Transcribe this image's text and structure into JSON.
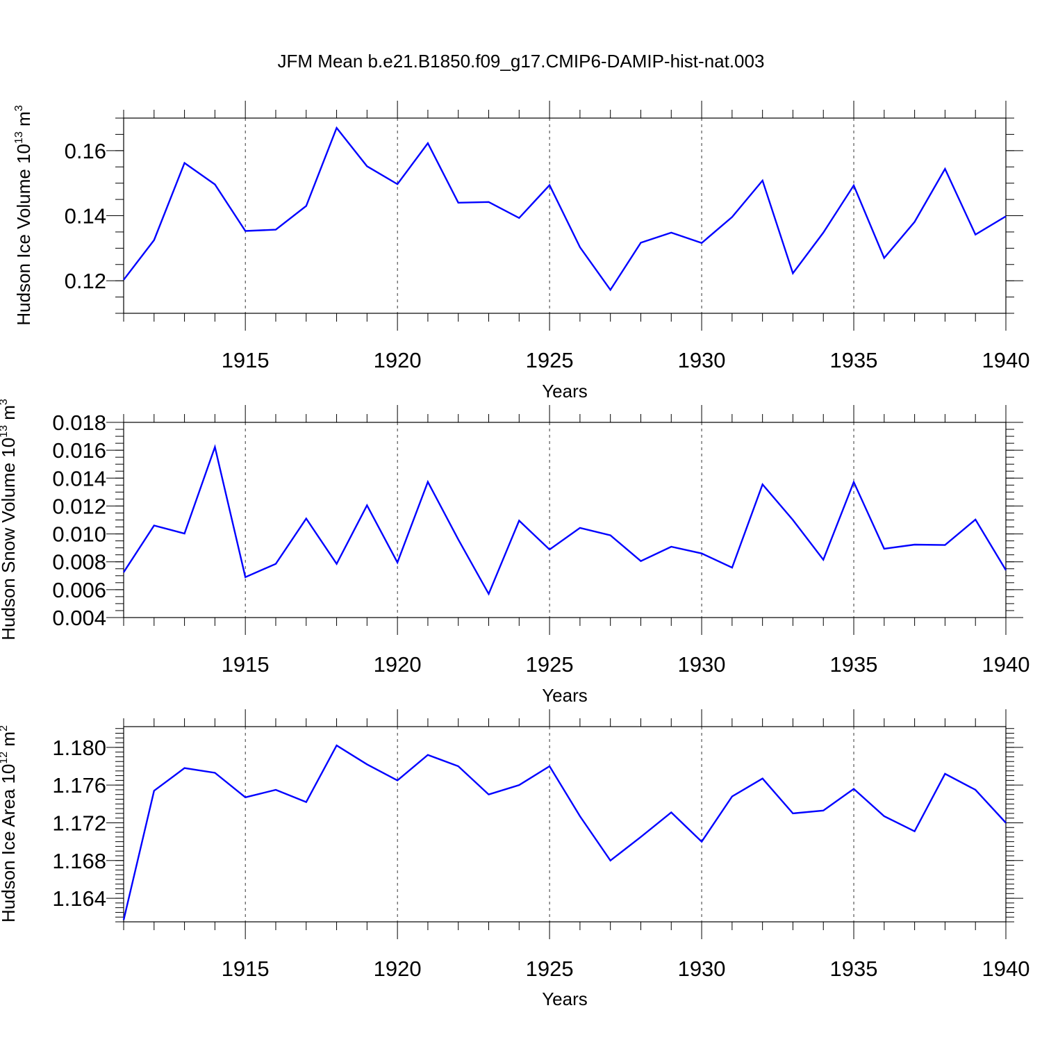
{
  "title": "JFM Mean b.e21.B1850.f09_g17.CMIP6-DAMIP-hist-nat.003",
  "chart_data": [
    {
      "type": "line",
      "ylabel": "Hudson Ice Volume 10",
      "ylabel_exp": "13",
      "ylabel_unit": " m",
      "ylabel_unit_exp": "3",
      "xlabel": "Years",
      "xlim": [
        1911,
        1940
      ],
      "ylim": [
        0.11,
        0.17
      ],
      "major_yticks": [
        0.12,
        0.14,
        0.16
      ],
      "major_ytick_labels": [
        "0.12",
        "0.14",
        "0.16"
      ],
      "minor_ystep": 0.005,
      "major_xticks": [
        1915,
        1920,
        1925,
        1930,
        1935,
        1940
      ],
      "major_xtick_labels": [
        "1915",
        "1920",
        "1925",
        "1930",
        "1935",
        "1940"
      ],
      "line_color": "#0000ff",
      "grid": "vertical dashed at major x ticks",
      "x": [
        1911,
        1912,
        1913,
        1914,
        1915,
        1916,
        1917,
        1918,
        1919,
        1920,
        1921,
        1922,
        1923,
        1924,
        1925,
        1926,
        1927,
        1928,
        1929,
        1930,
        1931,
        1932,
        1933,
        1934,
        1935,
        1936,
        1937,
        1938,
        1939,
        1940
      ],
      "values": [
        0.1203,
        0.1325,
        0.1562,
        0.1496,
        0.1353,
        0.1357,
        0.143,
        0.167,
        0.1552,
        0.1497,
        0.1623,
        0.144,
        0.1442,
        0.1393,
        0.1494,
        0.1303,
        0.1172,
        0.1317,
        0.1348,
        0.1316,
        0.1396,
        0.1508,
        0.1223,
        0.1348,
        0.1493,
        0.127,
        0.1381,
        0.1544,
        0.1342,
        0.1398
      ]
    },
    {
      "type": "line",
      "ylabel": "Hudson Snow Volume 10",
      "ylabel_exp": "13",
      "ylabel_unit": " m",
      "ylabel_unit_exp": "3",
      "xlabel": "Years",
      "xlim": [
        1911,
        1940
      ],
      "ylim": [
        0.004,
        0.018
      ],
      "major_yticks": [
        0.004,
        0.006,
        0.008,
        0.01,
        0.012,
        0.014,
        0.016,
        0.018
      ],
      "major_ytick_labels": [
        "0.004",
        "0.006",
        "0.008",
        "0.010",
        "0.012",
        "0.014",
        "0.016",
        "0.018"
      ],
      "minor_ystep": 0.0005,
      "major_xticks": [
        1915,
        1920,
        1925,
        1930,
        1935,
        1940
      ],
      "major_xtick_labels": [
        "1915",
        "1920",
        "1925",
        "1930",
        "1935",
        "1940"
      ],
      "line_color": "#0000ff",
      "grid": "vertical dashed at major x ticks",
      "x": [
        1911,
        1912,
        1913,
        1914,
        1915,
        1916,
        1917,
        1918,
        1919,
        1920,
        1921,
        1922,
        1923,
        1924,
        1925,
        1926,
        1927,
        1928,
        1929,
        1930,
        1931,
        1932,
        1933,
        1934,
        1935,
        1936,
        1937,
        1938,
        1939,
        1940
      ],
      "values": [
        0.00725,
        0.0106,
        0.01003,
        0.01623,
        0.0069,
        0.00785,
        0.0111,
        0.00785,
        0.01205,
        0.00795,
        0.01373,
        0.0096,
        0.0057,
        0.01095,
        0.00888,
        0.01043,
        0.0099,
        0.00805,
        0.00908,
        0.0086,
        0.00758,
        0.01355,
        0.011,
        0.00815,
        0.01372,
        0.00893,
        0.00923,
        0.0092,
        0.01103,
        0.0074
      ]
    },
    {
      "type": "line",
      "ylabel": "Hudson Ice Area 10",
      "ylabel_exp": "12",
      "ylabel_unit": " m",
      "ylabel_unit_exp": "2",
      "xlabel": "Years",
      "xlim": [
        1911,
        1940
      ],
      "ylim": [
        1.1615,
        1.1822
      ],
      "major_yticks": [
        1.164,
        1.168,
        1.172,
        1.176,
        1.18
      ],
      "major_ytick_labels": [
        "1.164",
        "1.168",
        "1.172",
        "1.176",
        "1.180"
      ],
      "minor_ystep": 0.0005,
      "major_xticks": [
        1915,
        1920,
        1925,
        1930,
        1935,
        1940
      ],
      "major_xtick_labels": [
        "1915",
        "1920",
        "1925",
        "1930",
        "1935",
        "1940"
      ],
      "line_color": "#0000ff",
      "grid": "vertical dashed at major x ticks",
      "x": [
        1911,
        1912,
        1913,
        1914,
        1915,
        1916,
        1917,
        1918,
        1919,
        1920,
        1921,
        1922,
        1923,
        1924,
        1925,
        1926,
        1927,
        1928,
        1929,
        1930,
        1931,
        1932,
        1933,
        1934,
        1935,
        1936,
        1937,
        1938,
        1939,
        1940
      ],
      "values": [
        1.1617,
        1.1754,
        1.1778,
        1.1773,
        1.1747,
        1.1755,
        1.1742,
        1.1802,
        1.1782,
        1.1765,
        1.1792,
        1.178,
        1.175,
        1.176,
        1.178,
        1.1727,
        1.168,
        1.1705,
        1.1731,
        1.17,
        1.1748,
        1.1767,
        1.173,
        1.1733,
        1.1756,
        1.1727,
        1.1711,
        1.1772,
        1.1755,
        1.172
      ]
    }
  ]
}
